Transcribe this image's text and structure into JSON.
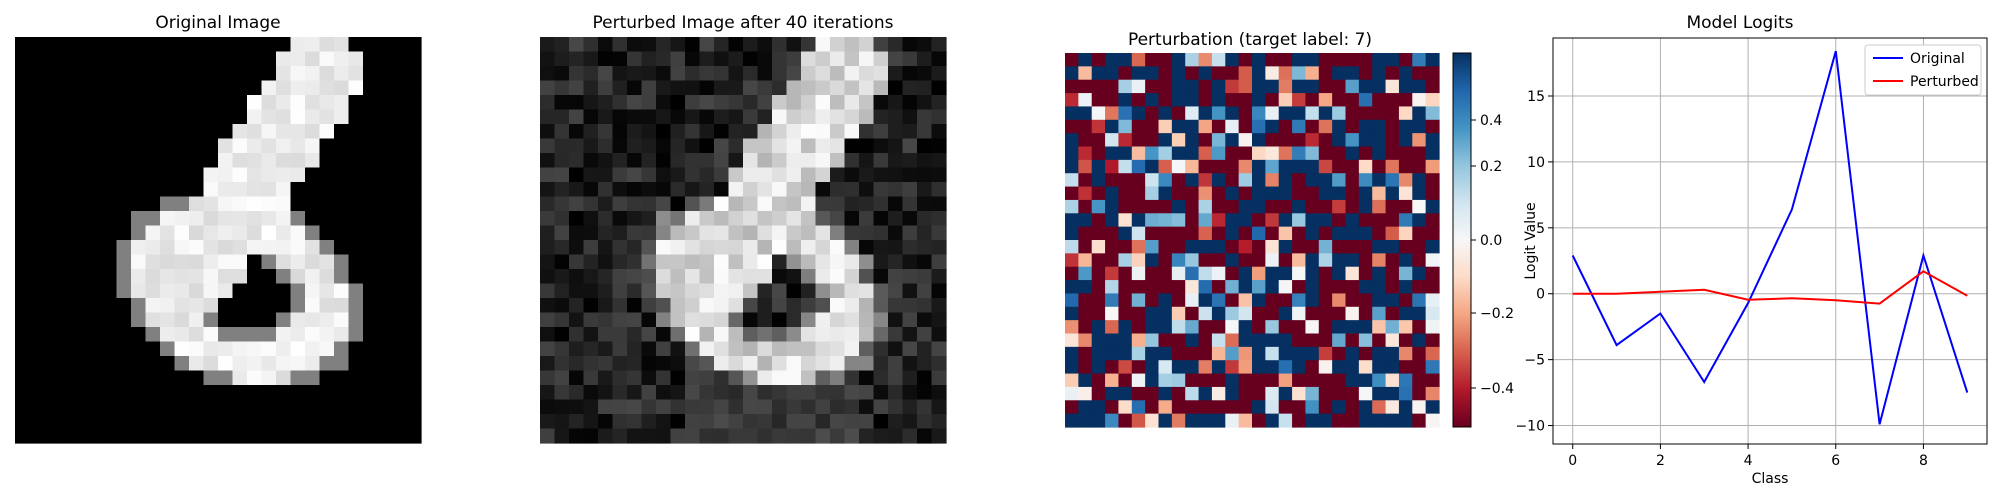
{
  "panels": {
    "original": {
      "title": "Original Image"
    },
    "perturbed": {
      "title": "Perturbed Image after 40 iterations"
    },
    "perturbation": {
      "title": "Perturbation (target label: 7)",
      "colormap": "RdBu",
      "clim": [
        -0.5,
        0.5
      ],
      "colorbar_ticks": [
        "0.4",
        "0.2",
        "0.0",
        "−0.2",
        "−0.4"
      ]
    }
  },
  "chart_data": {
    "type": "line",
    "title": "Model Logits",
    "xlabel": "Class",
    "ylabel": "Logit Value",
    "xlim": [
      -0.45,
      9.45
    ],
    "ylim": [
      -11.4,
      19.4
    ],
    "grid": true,
    "legend": "top-right",
    "x": [
      0,
      1,
      2,
      3,
      4,
      5,
      6,
      7,
      8,
      9
    ],
    "series": [
      {
        "name": "Original",
        "color": "#0000ff",
        "values": [
          2.9,
          -3.9,
          -1.5,
          -6.7,
          -0.7,
          6.4,
          18.4,
          -9.9,
          2.9,
          -7.5
        ]
      },
      {
        "name": "Perturbed",
        "color": "#ff0000",
        "values": [
          0.0,
          0.0,
          0.15,
          0.3,
          -0.45,
          -0.35,
          -0.5,
          -0.75,
          1.7,
          -0.15
        ]
      }
    ],
    "xticks": [
      "0",
      "2",
      "4",
      "6",
      "8"
    ],
    "yticks": [
      "15",
      "10",
      "5",
      "0",
      "−5",
      "−10"
    ]
  }
}
